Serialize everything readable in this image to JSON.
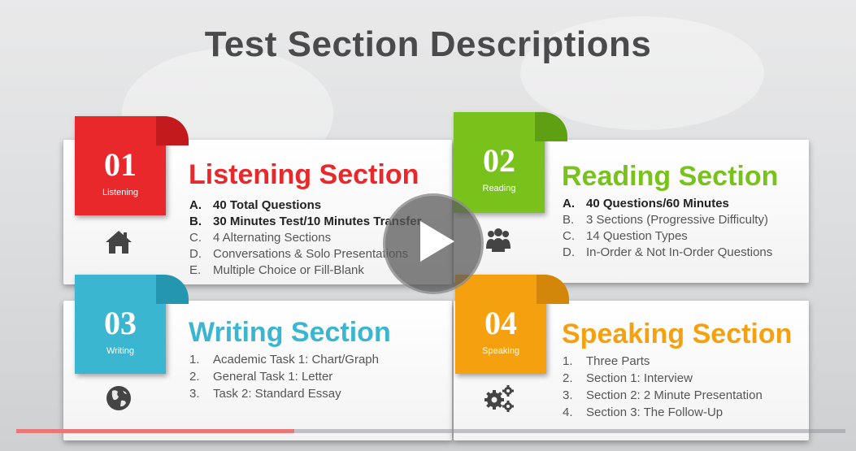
{
  "slide": {
    "title": "Test Section Descriptions"
  },
  "sections": [
    {
      "number": "01",
      "tab_label": "Listening",
      "heading": "Listening Section",
      "color": "#e8282b",
      "icon": "home-icon",
      "items": [
        {
          "marker": "A.",
          "text": "40 Total Questions",
          "bold": true
        },
        {
          "marker": "B.",
          "text": "30 Minutes Test/10 Minutes Transfer",
          "bold": true
        },
        {
          "marker": "C.",
          "text": "4 Alternating Sections",
          "bold": false
        },
        {
          "marker": "D.",
          "text": "Conversations & Solo Presentations",
          "bold": false
        },
        {
          "marker": "E.",
          "text": "Multiple Choice or Fill-Blank",
          "bold": false
        }
      ]
    },
    {
      "number": "02",
      "tab_label": "Reading",
      "heading": "Reading Section",
      "color": "#79c21c",
      "icon": "people-icon",
      "items": [
        {
          "marker": "A.",
          "text": "40 Questions/60 Minutes",
          "bold": true
        },
        {
          "marker": "B.",
          "text": "3 Sections (Progressive Difficulty)",
          "bold": false
        },
        {
          "marker": "C.",
          "text": "14 Question Types",
          "bold": false
        },
        {
          "marker": "D.",
          "text": "In-Order & Not  In-Order Questions",
          "bold": false
        }
      ]
    },
    {
      "number": "03",
      "tab_label": "Writing",
      "heading": "Writing Section",
      "color": "#3bb6d1",
      "icon": "globe-icon",
      "items": [
        {
          "marker": "1.",
          "text": "Academic Task 1: Chart/Graph",
          "bold": false
        },
        {
          "marker": "2.",
          "text": "General Task 1: Letter",
          "bold": false
        },
        {
          "marker": "3.",
          "text": "Task 2: Standard Essay",
          "bold": false
        }
      ]
    },
    {
      "number": "04",
      "tab_label": "Speaking",
      "heading": "Speaking Section",
      "color": "#f5a10f",
      "icon": "gears-icon",
      "items": [
        {
          "marker": "1.",
          "text": "Three Parts",
          "bold": false
        },
        {
          "marker": "2.",
          "text": "Section 1: Interview",
          "bold": false
        },
        {
          "marker": "3.",
          "text": "Section 2: 2 Minute Presentation",
          "bold": false
        },
        {
          "marker": "4.",
          "text": "Section 3: The Follow-Up",
          "bold": false
        }
      ]
    }
  ],
  "player": {
    "progress": 0.335,
    "play_icon": "play-icon",
    "progress_color": "#e8777a"
  }
}
